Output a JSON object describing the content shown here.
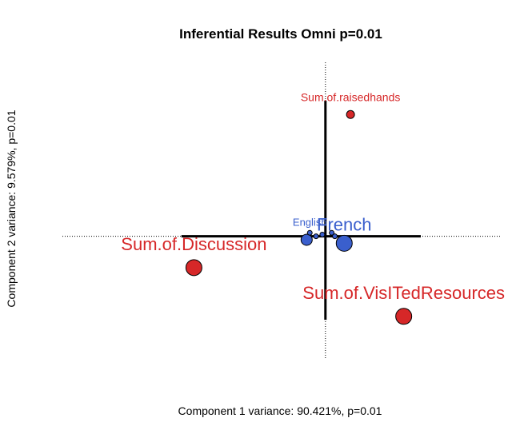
{
  "chart_data": {
    "type": "scatter",
    "title": "Inferential Results Omni p=0.01",
    "xlabel": "Component 1 variance: 90.421%, p=0.01",
    "ylabel": "Component 2 variance: 9.579%, p=0.01",
    "xlim": [
      -4.6,
      5.6
    ],
    "ylim": [
      -3.5,
      5.0
    ],
    "colors": {
      "variables": "#d62728",
      "groups": "#3a5fcd",
      "axis": "#000000"
    },
    "confidence_bars": {
      "x": [
        -4.6,
        5.6
      ],
      "y": [
        -2.4,
        3.9
      ],
      "x_full": [
        -8.4,
        5.6
      ],
      "y_full": [
        -3.5,
        5.0
      ]
    },
    "variables": [
      {
        "label": "Sum.of.raisedhands",
        "x": 0.8,
        "y": 3.5,
        "size": "small"
      },
      {
        "label": "Sum.of.Discussion",
        "x": -4.2,
        "y": -0.9,
        "size": "large"
      },
      {
        "label": "Sum.of.VisITedResources",
        "x": 2.5,
        "y": -2.3,
        "size": "large"
      }
    ],
    "groups": [
      {
        "label": "French",
        "x": 0.6,
        "y": -0.2,
        "size": "large",
        "show_label": true
      },
      {
        "label": "",
        "x": -0.6,
        "y": -0.1,
        "size": "medium",
        "show_label": false
      },
      {
        "label": "English",
        "x": -0.5,
        "y": 0.1,
        "size": "tiny",
        "show_label": true
      },
      {
        "label": "",
        "x": -0.3,
        "y": 0.0,
        "size": "tiny",
        "show_label": false
      },
      {
        "label": "",
        "x": 0.2,
        "y": 0.1,
        "size": "tiny",
        "show_label": false
      },
      {
        "label": "",
        "x": 0.3,
        "y": 0.0,
        "size": "tiny",
        "show_label": false
      },
      {
        "label": "",
        "x": -0.1,
        "y": 0.05,
        "size": "tiny",
        "show_label": false
      }
    ]
  }
}
